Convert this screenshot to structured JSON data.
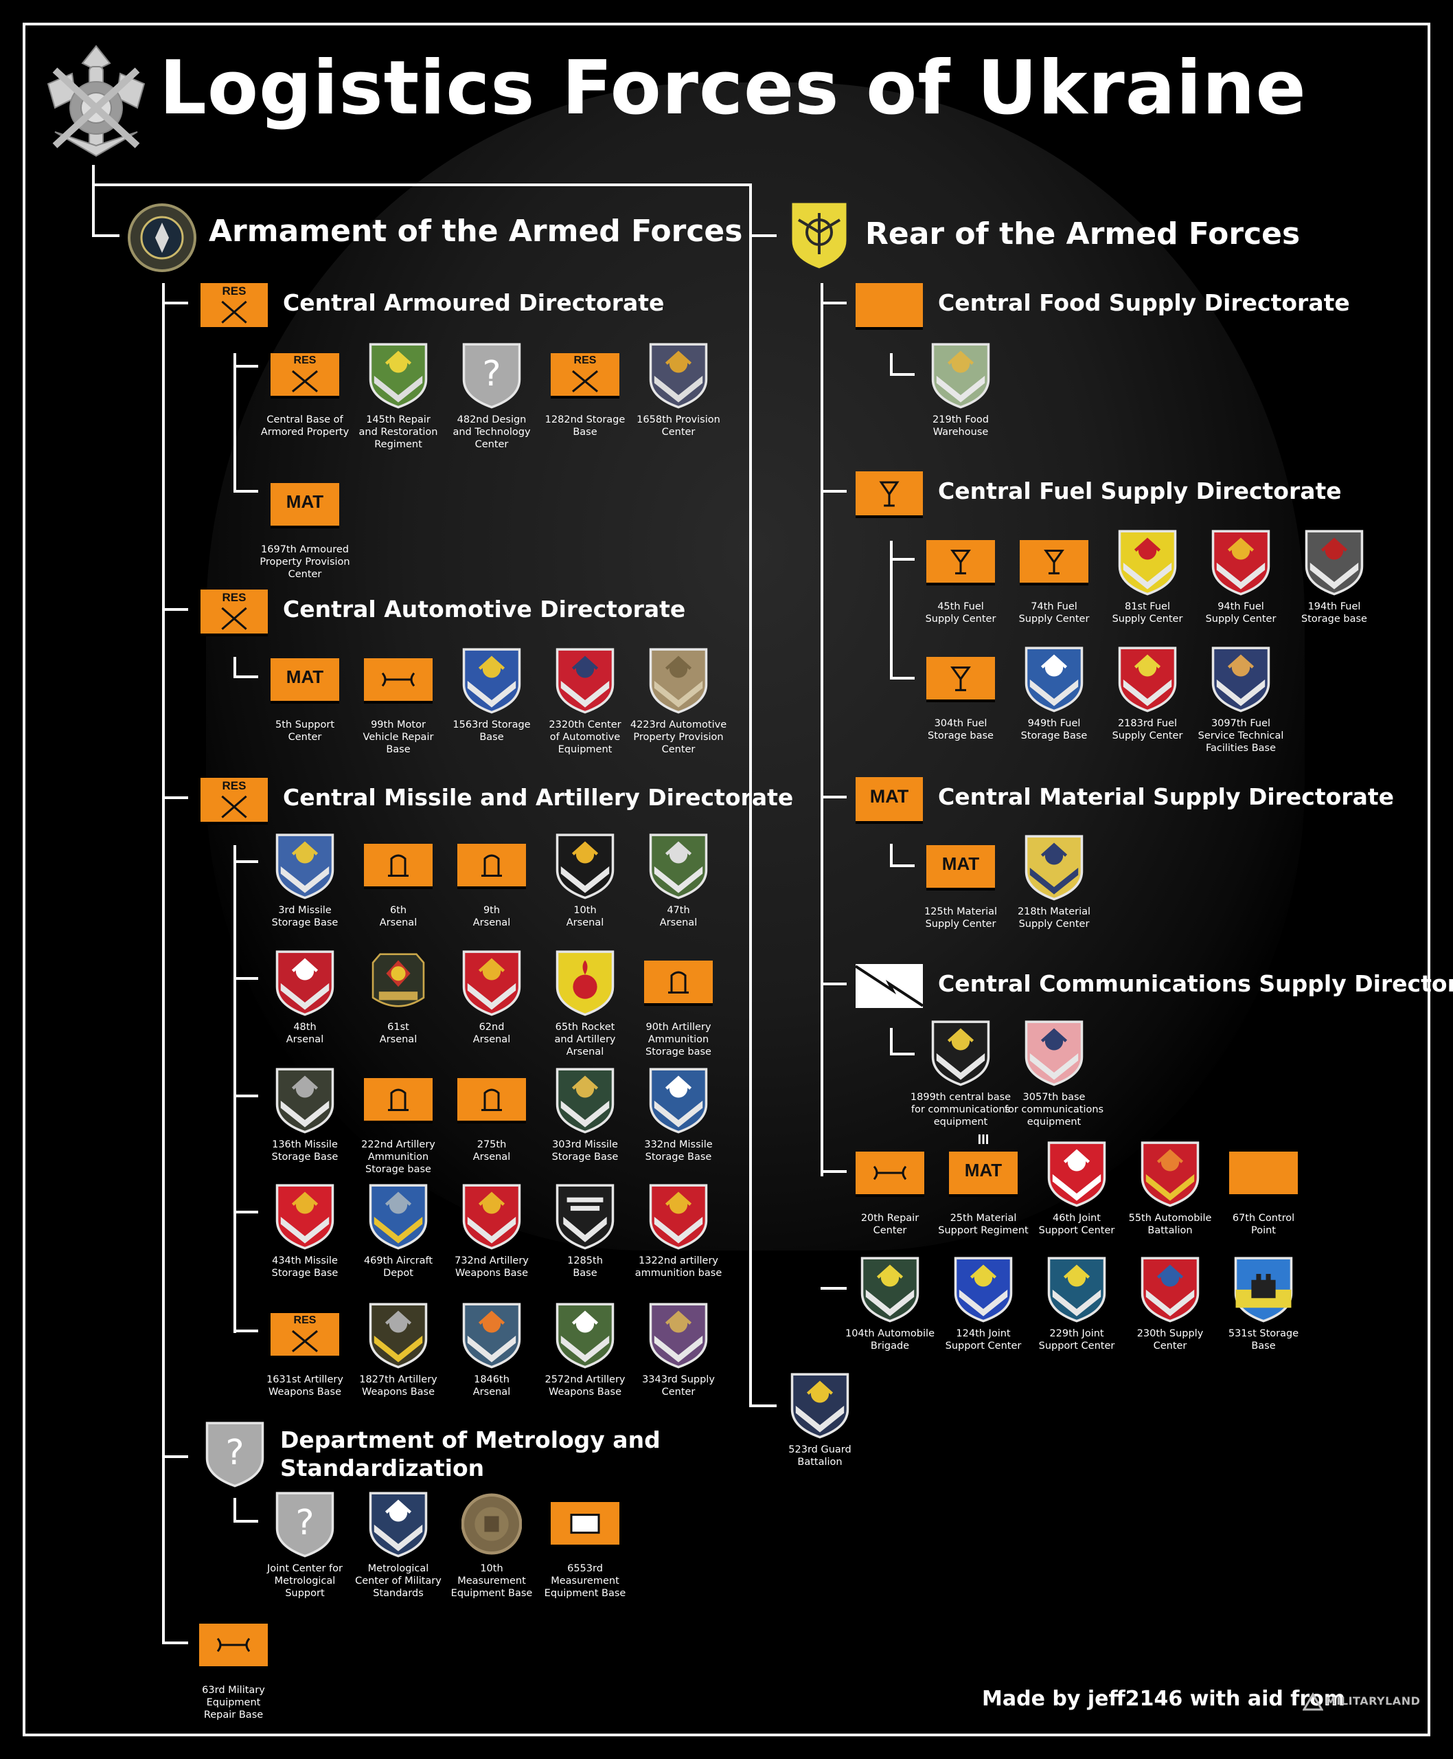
{
  "title": "Logistics Forces of Ukraine",
  "credit": "Made by jeff2146 with aid from",
  "credit_logo": "MILITARYLAND",
  "armament": {
    "title": "Armament of the Armed Forces",
    "armoured": {
      "title": "Central Armoured Directorate",
      "units": [
        {
          "label": "Central Base of\nArmored Property",
          "badge": "sym-res"
        },
        {
          "label": "145th Repair\nand Restoration\nRegiment",
          "badge": "shield-gear"
        },
        {
          "label": "482nd Design\nand Technology\nCenter",
          "badge": "shield-unknown"
        },
        {
          "label": "1282nd Storage\nBase",
          "badge": "sym-res"
        },
        {
          "label": "1658th Provision\nCenter",
          "badge": "shield-horseshoe"
        },
        {
          "label": "1697th Armoured\nProperty Provision\nCenter",
          "badge": "sym-mat"
        }
      ]
    },
    "automotive": {
      "title": "Central Automotive Directorate",
      "units": [
        {
          "label": "5th Support\nCenter",
          "badge": "sym-mat"
        },
        {
          "label": "99th Motor\nVehicle Repair\nBase",
          "badge": "sym-repair"
        },
        {
          "label": "1563rd Storage\nBase",
          "badge": "shield-wings"
        },
        {
          "label": "2320th Center\nof Automotive\nEquipment",
          "badge": "shield-wheel"
        },
        {
          "label": "4223rd Automotive\nProperty Provision\nCenter",
          "badge": "shield-tan"
        }
      ]
    },
    "missile": {
      "title": "Central Missile and Artillery Directorate",
      "units": [
        {
          "label": "3rd Missile\nStorage Base",
          "badge": "shield-arrows"
        },
        {
          "label": "6th\nArsenal",
          "badge": "sym-arsenal"
        },
        {
          "label": "9th\nArsenal",
          "badge": "sym-arsenal"
        },
        {
          "label": "10th\nArsenal",
          "badge": "shield-sun"
        },
        {
          "label": "47th\nArsenal",
          "badge": "shield-lily"
        },
        {
          "label": "48th\nArsenal",
          "badge": "shield-red-arrows"
        },
        {
          "label": "61st\nArsenal",
          "badge": "badge-61"
        },
        {
          "label": "62nd\nArsenal",
          "badge": "shield-red-emblem"
        },
        {
          "label": "65th Rocket\nand Artillery\nArsenal",
          "badge": "shield-grenade"
        },
        {
          "label": "90th Artillery\nAmmunition\nStorage base",
          "badge": "sym-arsenal"
        },
        {
          "label": "136th Missile\nStorage Base",
          "badge": "shield-eagle"
        },
        {
          "label": "222nd Artillery\nAmmunition\nStorage base",
          "badge": "sym-arsenal"
        },
        {
          "label": "275th\nArsenal",
          "badge": "sym-arsenal"
        },
        {
          "label": "303rd Missile\nStorage Base",
          "badge": "shield-green-rockets"
        },
        {
          "label": "332nd Missile\nStorage Base",
          "badge": "shield-blue-wing"
        },
        {
          "label": "434th Missile\nStorage Base",
          "badge": "shield-red-rocket"
        },
        {
          "label": "469th Aircraft\nDepot",
          "badge": "shield-bombs"
        },
        {
          "label": "732nd Artillery\nWeapons Base",
          "badge": "shield-red-cross"
        },
        {
          "label": "1285th\nBase",
          "badge": "shield-stripes"
        },
        {
          "label": "1322nd artillery\nammunition base",
          "badge": "shield-red-yellow"
        },
        {
          "label": "1631st Artillery\nWeapons Base",
          "badge": "sym-res"
        },
        {
          "label": "1827th Artillery\nWeapons Base",
          "badge": "shield-olive"
        },
        {
          "label": "1846th\nArsenal",
          "badge": "shield-slate"
        },
        {
          "label": "2572nd Artillery\nWeapons Base",
          "badge": "shield-green-diamond"
        },
        {
          "label": "3343rd Supply\nCenter",
          "badge": "shield-helmet"
        }
      ]
    },
    "metrology": {
      "title_line1": "Department of Metrology and",
      "title_line2": "Standardization",
      "units": [
        {
          "label": "Joint Center for\nMetrological\nSupport",
          "badge": "shield-unknown"
        },
        {
          "label": "Metrological\nCenter of Military\nStandards",
          "badge": "shield-hourglass"
        },
        {
          "label": "10th\nMeasurement\nEquipment Base",
          "badge": "round-tan"
        },
        {
          "label": "6553rd\nMeasurement\nEquipment Base",
          "badge": "sym-stor"
        }
      ]
    },
    "repair63": {
      "label": "63rd Military\nEquipment\nRepair Base",
      "badge": "sym-repair"
    }
  },
  "rear": {
    "title": "Rear of the Armed Forces",
    "food": {
      "title": "Central Food Supply Directorate",
      "units": [
        {
          "label": "219th Food\nWarehouse",
          "badge": "shield-food"
        }
      ]
    },
    "fuel": {
      "title": "Central Fuel Supply Directorate",
      "units": [
        {
          "label": "45th Fuel\nSupply Center",
          "badge": "sym-fuel"
        },
        {
          "label": "74th Fuel\nSupply Center",
          "badge": "sym-fuel"
        },
        {
          "label": "81st Fuel\nSupply Center",
          "badge": "shield-yellow-cross"
        },
        {
          "label": "94th Fuel\nSupply Center",
          "badge": "shield-red-bow"
        },
        {
          "label": "194th Fuel\nStorage base",
          "badge": "shield-grey-lion"
        },
        {
          "label": "304th Fuel\nStorage base",
          "badge": "sym-fuel"
        },
        {
          "label": "949th Fuel\nStorage Base",
          "badge": "shield-stars"
        },
        {
          "label": "2183rd Fuel\nSupply Center",
          "badge": "shield-red-yellow-sign"
        },
        {
          "label": "3097th Fuel\nService Technical\nFacilities Base",
          "badge": "shield-bear"
        }
      ]
    },
    "material": {
      "title": "Central Material Supply Directorate",
      "units": [
        {
          "label": "125th Material\nSupply Center",
          "badge": "sym-mat"
        },
        {
          "label": "218th Material\nSupply Center",
          "badge": "shield-gold-bow"
        }
      ]
    },
    "comms": {
      "title": "Central Communications Supply Directorate",
      "units": [
        {
          "label": "1899th central base\nfor communications\nequipment",
          "badge": "shield-gold-arrows"
        },
        {
          "label": "3057th base\nfor communications\nequipment",
          "badge": "shield-pink-sword"
        }
      ]
    },
    "direct": [
      {
        "label": "20th Repair\nCenter",
        "badge": "sym-repair"
      },
      {
        "label": "25th Material\nSupport Regiment",
        "badge": "sym-mat-reg"
      },
      {
        "label": "46th Joint\nSupport Center",
        "badge": "shield-red-w"
      },
      {
        "label": "55th Automobile\nBattalion",
        "badge": "shield-red-wheel"
      },
      {
        "label": "67th Control\nPoint",
        "badge": "sym-control"
      },
      {
        "label": "104th Automobile\nBrigade",
        "badge": "shield-green-wings"
      },
      {
        "label": "124th Joint\nSupport Center",
        "badge": "shield-blue-lion"
      },
      {
        "label": "229th Joint\nSupport Center",
        "badge": "shield-teal-bow"
      },
      {
        "label": "230th Supply\nCenter",
        "badge": "shield-blue-red"
      },
      {
        "label": "531st Storage\nBase",
        "badge": "shield-castle"
      }
    ],
    "guard": {
      "label": "523rd Guard\nBattalion",
      "badge": "shield-guard"
    }
  }
}
